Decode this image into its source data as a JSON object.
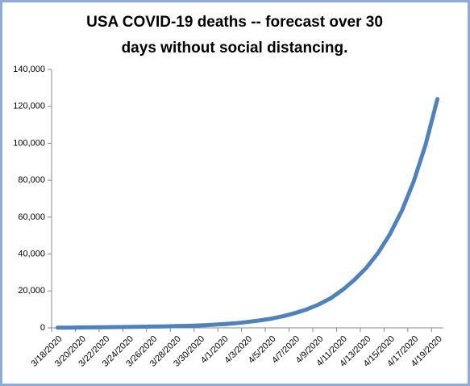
{
  "chart_data": {
    "type": "line",
    "title": [
      "USA COVID-19 deaths  -- forecast over 30",
      "days without social distancing."
    ],
    "categories": [
      "3/18/2020",
      null,
      "3/20/2020",
      null,
      "3/22/2020",
      null,
      "3/24/2020",
      null,
      "3/26/2020",
      null,
      "3/28/2020",
      null,
      "3/30/2020",
      null,
      "4/1/2020",
      null,
      "4/3/2020",
      null,
      "4/5/2020",
      null,
      "4/7/2020",
      null,
      "4/9/2020",
      null,
      "4/11/2020",
      null,
      "4/13/2020",
      null,
      "4/15/2020",
      null,
      "4/17/2020",
      null,
      "4/19/2020"
    ],
    "series": [
      {
        "name": "USA COVID-19 deaths",
        "color": "#4f81bd",
        "values": [
          100,
          150,
          200,
          260,
          340,
          420,
          500,
          600,
          700,
          800,
          950,
          1100,
          1300,
          1600,
          2000,
          2500,
          3200,
          4000,
          5000,
          6300,
          8000,
          10000,
          12700,
          16000,
          20500,
          26000,
          32500,
          40600,
          50800,
          63500,
          79400,
          99200,
          124000
        ]
      }
    ],
    "ylim": [
      0,
      140000
    ],
    "yticks": [
      0,
      {
        "value": 20000,
        "label": "20,000"
      },
      {
        "value": 40000,
        "label": "40,000"
      },
      {
        "value": 60000,
        "label": "60,000"
      },
      {
        "value": 80000,
        "label": "80,000"
      },
      {
        "value": 100000,
        "label": "100,000"
      },
      {
        "value": 120000,
        "label": "120,000"
      },
      {
        "value": 140000,
        "label": "140,000"
      }
    ],
    "grid": false
  }
}
